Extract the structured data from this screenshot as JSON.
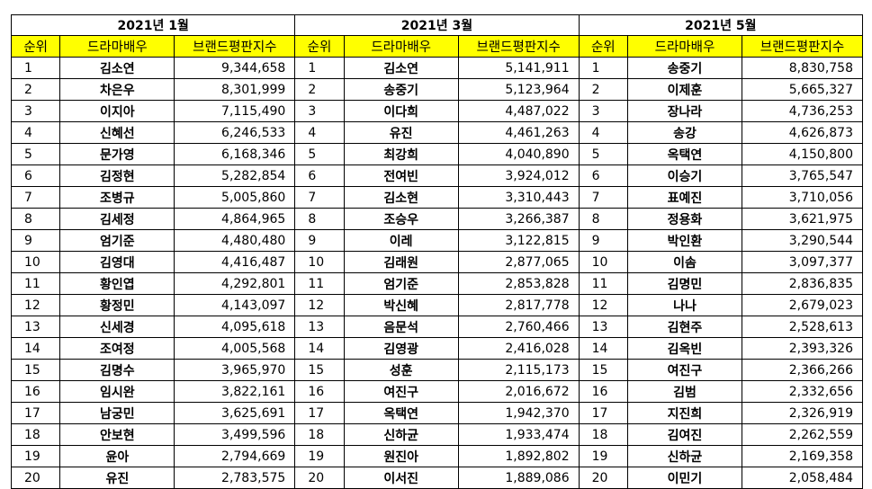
{
  "columns": {
    "rank": "순위",
    "actor": "드라마배우",
    "index": "브랜드평판지수"
  },
  "sections": [
    {
      "title": "2021년 1월",
      "rows": [
        {
          "rank": "1",
          "name": "김소연",
          "score": "9,344,658"
        },
        {
          "rank": "2",
          "name": "차은우",
          "score": "8,301,999"
        },
        {
          "rank": "3",
          "name": "이지아",
          "score": "7,115,490"
        },
        {
          "rank": "4",
          "name": "신혜선",
          "score": "6,246,533"
        },
        {
          "rank": "5",
          "name": "문가영",
          "score": "6,168,346"
        },
        {
          "rank": "6",
          "name": "김정현",
          "score": "5,282,854"
        },
        {
          "rank": "7",
          "name": "조병규",
          "score": "5,005,860"
        },
        {
          "rank": "8",
          "name": "김세정",
          "score": "4,864,965"
        },
        {
          "rank": "9",
          "name": "엄기준",
          "score": "4,480,480"
        },
        {
          "rank": "10",
          "name": "김영대",
          "score": "4,416,487"
        },
        {
          "rank": "11",
          "name": "황인엽",
          "score": "4,292,801"
        },
        {
          "rank": "12",
          "name": "황정민",
          "score": "4,143,097"
        },
        {
          "rank": "13",
          "name": "신세경",
          "score": "4,095,618"
        },
        {
          "rank": "14",
          "name": "조여정",
          "score": "4,005,568"
        },
        {
          "rank": "15",
          "name": "김명수",
          "score": "3,965,970"
        },
        {
          "rank": "16",
          "name": "임시완",
          "score": "3,822,161"
        },
        {
          "rank": "17",
          "name": "남궁민",
          "score": "3,625,691"
        },
        {
          "rank": "18",
          "name": "안보현",
          "score": "3,499,596"
        },
        {
          "rank": "19",
          "name": "윤아",
          "score": "2,794,669"
        },
        {
          "rank": "20",
          "name": "유진",
          "score": "2,783,575"
        }
      ]
    },
    {
      "title": "2021년 3월",
      "rows": [
        {
          "rank": "1",
          "name": "김소연",
          "score": "5,141,911"
        },
        {
          "rank": "2",
          "name": "송중기",
          "score": "5,123,964"
        },
        {
          "rank": "3",
          "name": "이다희",
          "score": "4,487,022"
        },
        {
          "rank": "4",
          "name": "유진",
          "score": "4,461,263"
        },
        {
          "rank": "5",
          "name": "최강희",
          "score": "4,040,890"
        },
        {
          "rank": "6",
          "name": "전여빈",
          "score": "3,924,012"
        },
        {
          "rank": "7",
          "name": "김소현",
          "score": "3,310,443"
        },
        {
          "rank": "8",
          "name": "조승우",
          "score": "3,266,387"
        },
        {
          "rank": "9",
          "name": "이레",
          "score": "3,122,815"
        },
        {
          "rank": "10",
          "name": "김래원",
          "score": "2,877,065"
        },
        {
          "rank": "11",
          "name": "엄기준",
          "score": "2,853,828"
        },
        {
          "rank": "12",
          "name": "박신혜",
          "score": "2,817,778"
        },
        {
          "rank": "13",
          "name": "음문석",
          "score": "2,760,466"
        },
        {
          "rank": "14",
          "name": "김영광",
          "score": "2,416,028"
        },
        {
          "rank": "15",
          "name": "성훈",
          "score": "2,115,173"
        },
        {
          "rank": "16",
          "name": "여진구",
          "score": "2,016,672"
        },
        {
          "rank": "17",
          "name": "옥택연",
          "score": "1,942,370"
        },
        {
          "rank": "18",
          "name": "신하균",
          "score": "1,933,474"
        },
        {
          "rank": "19",
          "name": "원진아",
          "score": "1,892,802"
        },
        {
          "rank": "20",
          "name": "이서진",
          "score": "1,889,086"
        }
      ]
    },
    {
      "title": "2021년 5월",
      "rows": [
        {
          "rank": "1",
          "name": "송중기",
          "score": "8,830,758"
        },
        {
          "rank": "2",
          "name": "이제훈",
          "score": "5,665,327"
        },
        {
          "rank": "3",
          "name": "장나라",
          "score": "4,736,253"
        },
        {
          "rank": "4",
          "name": "송강",
          "score": "4,626,873"
        },
        {
          "rank": "5",
          "name": "옥택연",
          "score": "4,150,800"
        },
        {
          "rank": "6",
          "name": "이승기",
          "score": "3,765,547"
        },
        {
          "rank": "7",
          "name": "표예진",
          "score": "3,710,056"
        },
        {
          "rank": "8",
          "name": "정용화",
          "score": "3,621,975"
        },
        {
          "rank": "9",
          "name": "박인환",
          "score": "3,290,544"
        },
        {
          "rank": "10",
          "name": "이솜",
          "score": "3,097,377"
        },
        {
          "rank": "11",
          "name": "김명민",
          "score": "2,836,835"
        },
        {
          "rank": "12",
          "name": "나나",
          "score": "2,679,023"
        },
        {
          "rank": "13",
          "name": "김현주",
          "score": "2,528,613"
        },
        {
          "rank": "14",
          "name": "김옥빈",
          "score": "2,393,326"
        },
        {
          "rank": "15",
          "name": "여진구",
          "score": "2,366,266"
        },
        {
          "rank": "16",
          "name": "김범",
          "score": "2,332,656"
        },
        {
          "rank": "17",
          "name": "지진희",
          "score": "2,326,919"
        },
        {
          "rank": "18",
          "name": "김여진",
          "score": "2,262,559"
        },
        {
          "rank": "19",
          "name": "신하균",
          "score": "2,169,358"
        },
        {
          "rank": "20",
          "name": "이민기",
          "score": "2,058,484"
        }
      ]
    }
  ]
}
